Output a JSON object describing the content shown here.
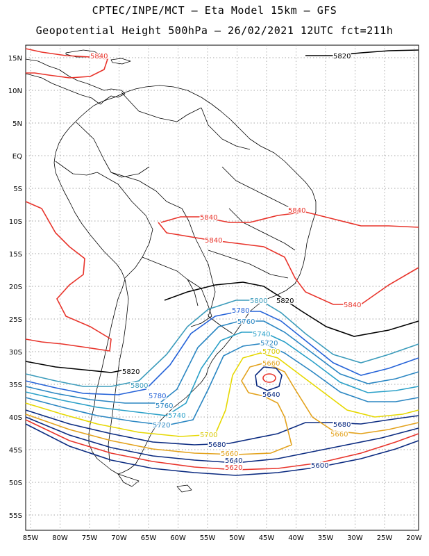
{
  "header": {
    "line1": "CPTEC/INPE/MCT –  Eta Model 15km – GFS",
    "line2": "Geopotential Height 500hPa – 26/02/2021 12UTC fct=211h"
  },
  "axes": {
    "lat_labels": [
      "15N",
      "10N",
      "5N",
      "EQ",
      "5S",
      "10S",
      "15S",
      "20S",
      "25S",
      "30S",
      "35S",
      "40S",
      "45S",
      "50S",
      "55S"
    ],
    "lon_labels": [
      "85W",
      "80W",
      "75W",
      "70W",
      "65W",
      "60W",
      "55W",
      "50W",
      "45W",
      "40W",
      "35W",
      "30W",
      "25W",
      "20W"
    ]
  },
  "contour_labels": [
    {
      "text": "5820",
      "color": "#000000"
    },
    {
      "text": "5840",
      "color": "#e8332a"
    },
    {
      "text": "5840",
      "color": "#e8332a"
    },
    {
      "text": "5840",
      "color": "#e8332a"
    },
    {
      "text": "5840",
      "color": "#e8332a"
    },
    {
      "text": "5840",
      "color": "#e8332a"
    },
    {
      "text": "5820",
      "color": "#000000"
    },
    {
      "text": "5800",
      "color": "#3a9bbb"
    },
    {
      "text": "5780",
      "color": "#2462d8"
    },
    {
      "text": "5760",
      "color": "#2a86c2"
    },
    {
      "text": "5740",
      "color": "#2aa0c8"
    },
    {
      "text": "5720",
      "color": "#2a86c2"
    },
    {
      "text": "5700",
      "color": "#d8c800"
    },
    {
      "text": "5660",
      "color": "#e3a21c"
    },
    {
      "text": "5640",
      "color": "#0a2a80"
    },
    {
      "text": "5820",
      "color": "#000000"
    },
    {
      "text": "5800",
      "color": "#3a9bbb"
    },
    {
      "text": "5780",
      "color": "#2462d8"
    },
    {
      "text": "5760",
      "color": "#2a86c2"
    },
    {
      "text": "5740",
      "color": "#2aa0c8"
    },
    {
      "text": "5720",
      "color": "#2a86c2"
    },
    {
      "text": "5700",
      "color": "#d8c800"
    },
    {
      "text": "5680",
      "color": "#0a2a80"
    },
    {
      "text": "5660",
      "color": "#e3a21c"
    },
    {
      "text": "5640",
      "color": "#0a2a80"
    },
    {
      "text": "5620",
      "color": "#e8332a"
    },
    {
      "text": "5680",
      "color": "#0a2a80"
    },
    {
      "text": "5660",
      "color": "#e3a21c"
    },
    {
      "text": "5600",
      "color": "#0a2a80"
    }
  ]
}
